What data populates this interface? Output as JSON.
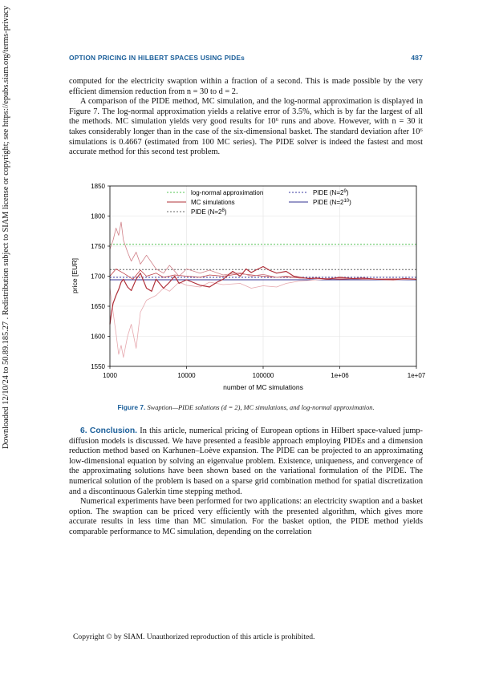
{
  "side_note": "Downloaded 12/10/24 to 50.89.185.27 . Redistribution subject to SIAM license or copyright; see https://epubs.siam.org/terms-privacy",
  "header": {
    "title": "OPTION PRICING IN HILBERT SPACES USING PIDEs",
    "page": "487"
  },
  "para1": "computed for the electricity swaption within a fraction of a second. This is made possible by the very efficient dimension reduction from n = 30 to d = 2.",
  "para2": "A comparison of the PIDE method, MC simulation, and the log-normal approximation is displayed in Figure 7. The log-normal approximation yields a relative error of 3.5%, which is by far the largest of all the methods. MC simulation yields very good results for 10⁶ runs and above. However, with n = 30 it takes considerably longer than in the case of the six-dimensional basket. The standard deviation after 10⁶ simulations is 0.4667 (estimated from 100 MC series). The PIDE solver is indeed the fastest and most accurate method for this second test problem.",
  "caption": {
    "label": "Figure 7.",
    "text": "Swaption—PIDE solutions (d = 2), MC simulations, and log-normal approximation."
  },
  "section": {
    "number": "6.",
    "title": "Conclusion.",
    "text": "In this article, numerical pricing of European options in Hilbert space-valued jump-diffusion models is discussed. We have presented a feasible approach employing PIDEs and a dimension reduction method based on Karhunen–Loève expansion. The PIDE can be projected to an approximating low-dimensional equation by solving an eigenvalue problem. Existence, uniqueness, and convergence of the approximating solutions have been shown based on the variational formulation of the PIDE. The numerical solution of the problem is based on a sparse grid combination method for spatial discretization and a discontinuous Galerkin time stepping method."
  },
  "para4": "Numerical experiments have been performed for two applications: an electricity swaption and a basket option. The swaption can be priced very efficiently with the presented algorithm, which gives more accurate results in less time than MC simulation. For the basket option, the PIDE method yields comparable performance to MC simulation, depending on the correlation",
  "footer": "Copyright © by SIAM. Unauthorized reproduction of this article is prohibited.",
  "chart_data": {
    "type": "line",
    "xlabel": "number of MC simulations",
    "ylabel": "price [EUR]",
    "xscale": "log",
    "xlim": [
      1000,
      10000000
    ],
    "ylim": [
      1550,
      1850
    ],
    "x_ticks": [
      1000,
      10000,
      100000,
      1000000,
      10000000
    ],
    "x_tick_labels": [
      "1000",
      "10000",
      "100000",
      "1e+06",
      "1e+07"
    ],
    "y_ticks": [
      1550,
      1600,
      1650,
      1700,
      1750,
      1800,
      1850
    ],
    "grid": true,
    "legend": "top",
    "horizontal_lines": [
      {
        "name": "log-normal approximation",
        "value": 1753,
        "color": "#55c455",
        "dash": "2,2"
      },
      {
        "name": "PIDE (N=2^8)",
        "value": 1711,
        "color": "#666666",
        "dash": "2,2"
      },
      {
        "name": "PIDE (N=2^9)",
        "value": 1698,
        "color": "#3a3aa0",
        "dash": "2,2"
      },
      {
        "name": "PIDE (N=2^10)",
        "value": 1694,
        "color": "#303090",
        "dash": ""
      }
    ],
    "mc_series": [
      {
        "label": "MC simulations",
        "color": "#b0303a",
        "width": 1.2,
        "x": [
          1000,
          1050,
          1100,
          1200,
          1300,
          1400,
          1500,
          1700,
          1900,
          2200,
          2500,
          3000,
          3500,
          4000,
          5000,
          6000,
          7000,
          8000,
          10000,
          12000,
          15000,
          20000,
          25000,
          30000,
          40000,
          50000,
          60000,
          70000,
          80000,
          100000,
          120000,
          150000,
          200000,
          250000,
          300000,
          400000,
          500000,
          700000,
          1000000,
          1500000,
          2000000,
          3000000,
          5000000,
          7000000,
          10000000
        ],
        "y": [
          1620,
          1640,
          1655,
          1668,
          1678,
          1690,
          1695,
          1682,
          1676,
          1695,
          1705,
          1680,
          1675,
          1695,
          1680,
          1690,
          1700,
          1688,
          1694,
          1690,
          1685,
          1682,
          1690,
          1695,
          1708,
          1700,
          1712,
          1706,
          1710,
          1716,
          1710,
          1705,
          1708,
          1700,
          1698,
          1696,
          1697,
          1695,
          1698,
          1696,
          1697,
          1695,
          1694,
          1696,
          1695
        ]
      },
      {
        "label": "",
        "color": "#d08088",
        "width": 0.8,
        "x": [
          1000,
          1100,
          1200,
          1300,
          1400,
          1500,
          1700,
          1900,
          2200,
          2500,
          3000,
          4000,
          5000,
          6000,
          8000,
          10000,
          15000,
          20000,
          30000,
          50000,
          70000,
          100000,
          150000,
          200000,
          300000,
          500000,
          1000000,
          2000000,
          5000000,
          10000000
        ],
        "y": [
          1745,
          1760,
          1780,
          1768,
          1790,
          1760,
          1740,
          1725,
          1740,
          1720,
          1735,
          1712,
          1705,
          1718,
          1700,
          1712,
          1705,
          1710,
          1702,
          1706,
          1700,
          1703,
          1698,
          1700,
          1697,
          1696,
          1697,
          1695,
          1696,
          1695
        ]
      },
      {
        "label": "",
        "color": "#e6a8ae",
        "width": 0.8,
        "x": [
          1000,
          1100,
          1200,
          1300,
          1400,
          1500,
          1700,
          1900,
          2200,
          2500,
          3000,
          4000,
          5000,
          6000,
          8000,
          10000,
          15000,
          20000,
          30000,
          50000,
          70000,
          100000,
          150000,
          200000,
          300000,
          500000,
          1000000,
          2000000,
          5000000,
          10000000
        ],
        "y": [
          1680,
          1640,
          1605,
          1570,
          1585,
          1565,
          1600,
          1620,
          1580,
          1640,
          1660,
          1668,
          1680,
          1675,
          1690,
          1685,
          1682,
          1690,
          1686,
          1688,
          1680,
          1684,
          1682,
          1688,
          1692,
          1694,
          1696,
          1695,
          1694,
          1695
        ]
      },
      {
        "label": "",
        "color": "#c04048",
        "width": 0.8,
        "x": [
          1000,
          1200,
          1500,
          2000,
          2500,
          3000,
          4000,
          5000,
          7000,
          10000,
          15000,
          20000,
          30000,
          50000,
          70000,
          100000,
          150000,
          200000,
          300000,
          500000,
          1000000,
          2000000,
          5000000,
          10000000
        ],
        "y": [
          1700,
          1712,
          1705,
          1695,
          1710,
          1700,
          1705,
          1698,
          1702,
          1700,
          1698,
          1702,
          1700,
          1704,
          1702,
          1700,
          1698,
          1699,
          1697,
          1696,
          1695,
          1696,
          1695,
          1695
        ]
      }
    ],
    "legend_entries": [
      {
        "label": "log-normal approximation",
        "color": "#55c455",
        "dash": "2,2",
        "sup": ""
      },
      {
        "label": "MC simulations",
        "color": "#b0303a",
        "dash": "",
        "sup": ""
      },
      {
        "label": "PIDE (N=2",
        "color": "#666666",
        "dash": "2,2",
        "sup": "8"
      },
      {
        "label": "PIDE (N=2",
        "color": "#3a3aa0",
        "dash": "2,2",
        "sup": "9"
      },
      {
        "label": "PIDE (N=2",
        "color": "#303090",
        "dash": "",
        "sup": "10"
      }
    ]
  }
}
